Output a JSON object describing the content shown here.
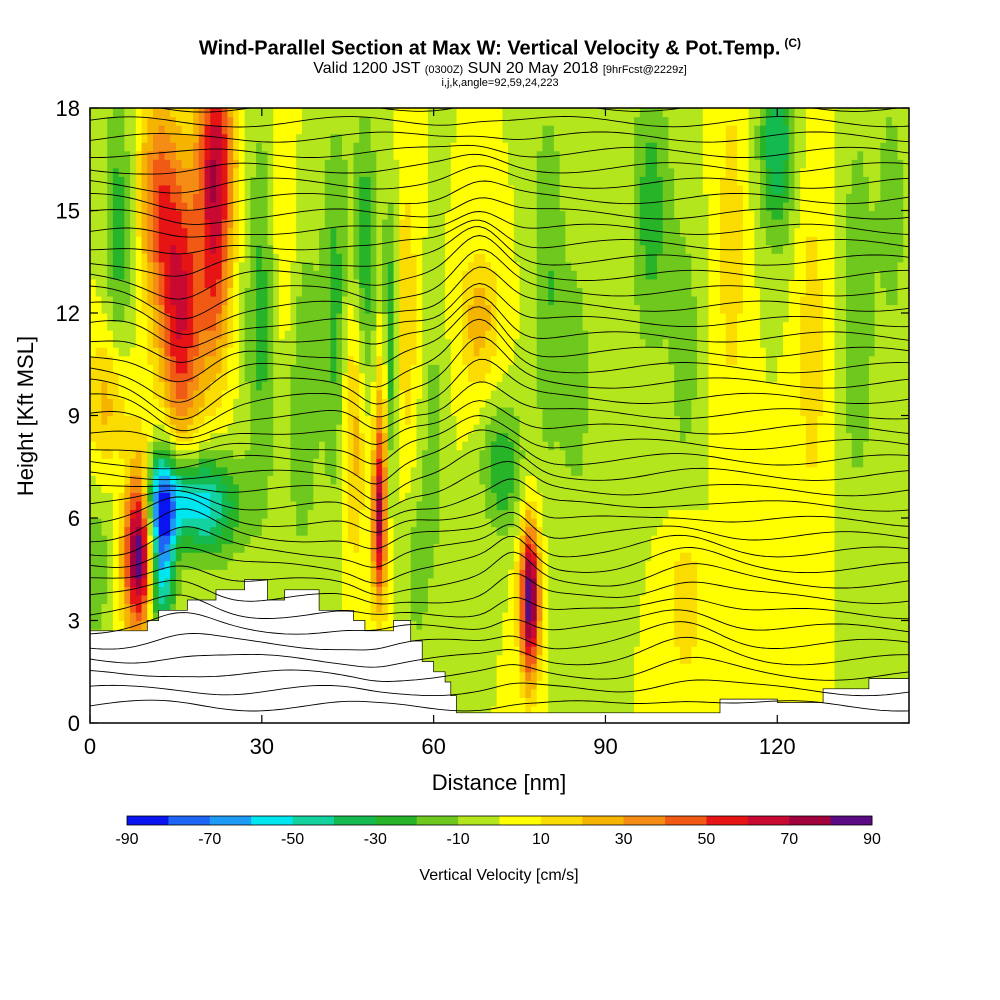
{
  "title": {
    "main": "Wind-Parallel Section at Max W: Vertical Velocity & Pot.Temp.",
    "copyright": "(C)",
    "valid_prefix": "Valid 1200 JST",
    "valid_utc": "(0300Z)",
    "valid_date": "SUN 20 May 2018",
    "forecast": "[9hrFcst@2229z]",
    "indices": "i,j,k,angle=92,59,24,223"
  },
  "chart_data": {
    "type": "heatmap",
    "title": "Wind-Parallel Section at Max W: Vertical Velocity & Pot.Temp.",
    "xlabel": "Distance [nm]",
    "ylabel": "Height [Kft MSL]",
    "xlim": [
      0,
      143
    ],
    "ylim": [
      0,
      18
    ],
    "x_ticks": [
      0,
      30,
      60,
      90,
      120
    ],
    "x_tick_labels": [
      "0",
      "30",
      "60",
      "90",
      "120"
    ],
    "y_ticks": [
      0,
      3,
      6,
      9,
      12,
      15,
      18
    ],
    "y_tick_labels": [
      "0",
      "3",
      "6",
      "9",
      "12",
      "15",
      "18"
    ],
    "colorbar": {
      "label": "Vertical Velocity [cm/s]",
      "tick_labels": [
        "-90",
        "-70",
        "-50",
        "-30",
        "-10",
        "10",
        "30",
        "50",
        "70",
        "90"
      ],
      "levels": [
        -90,
        -80,
        -70,
        -60,
        -50,
        -40,
        -30,
        -20,
        -10,
        0,
        10,
        20,
        30,
        40,
        50,
        60,
        70,
        80,
        90
      ],
      "colors": [
        "#0a14f0",
        "#1e64f5",
        "#1e9bf5",
        "#00e6f0",
        "#14d2a0",
        "#14b950",
        "#28b428",
        "#6ec81e",
        "#b4e61e",
        "#ffff00",
        "#fadc00",
        "#f5b400",
        "#f58c14",
        "#f05a14",
        "#e61414",
        "#c80a32",
        "#a0003c",
        "#5a0a82"
      ]
    },
    "background_value": 0,
    "w_features": [
      {
        "x": 8.5,
        "z": 5.2,
        "sx": 1.8,
        "sz": 1.7,
        "w": 95
      },
      {
        "x": 12.5,
        "z": 5.2,
        "sx": 1.6,
        "sz": 1.8,
        "w": -70
      },
      {
        "x": 14,
        "z": 6.6,
        "sx": 4.5,
        "sz": 0.9,
        "w": -45
      },
      {
        "x": 21,
        "z": 6.3,
        "sx": 4,
        "sz": 1.1,
        "w": -40
      },
      {
        "x": 16,
        "z": 12,
        "sx": 2.8,
        "sz": 2.8,
        "w": 60
      },
      {
        "x": 12,
        "z": 15.5,
        "sx": 2.5,
        "sz": 2.2,
        "w": 40
      },
      {
        "x": 22,
        "z": 16.5,
        "sx": 2.3,
        "sz": 2.2,
        "w": 65
      },
      {
        "x": 22,
        "z": 12.5,
        "sx": 1.8,
        "sz": 2,
        "w": 30
      },
      {
        "x": 5,
        "z": 14.5,
        "sx": 1.8,
        "sz": 3,
        "w": -25
      },
      {
        "x": 3,
        "z": 9.5,
        "sx": 2.5,
        "sz": 1.5,
        "w": 25
      },
      {
        "x": 30,
        "z": 12,
        "sx": 2,
        "sz": 4,
        "w": -25
      },
      {
        "x": 34,
        "z": 14,
        "sx": 2,
        "sz": 3,
        "w": 15
      },
      {
        "x": 37,
        "z": 10,
        "sx": 2,
        "sz": 4,
        "w": -20
      },
      {
        "x": 43,
        "z": 12,
        "sx": 1.8,
        "sz": 4,
        "w": -25
      },
      {
        "x": 46,
        "z": 9,
        "sx": 1.5,
        "sz": 3,
        "w": 30
      },
      {
        "x": 48,
        "z": 13.5,
        "sx": 1.5,
        "sz": 3,
        "w": -30
      },
      {
        "x": 50.5,
        "z": 5.8,
        "sx": 0.9,
        "sz": 1.7,
        "w": 65
      },
      {
        "x": 51,
        "z": 9,
        "sx": 0.9,
        "sz": 2.2,
        "w": 30
      },
      {
        "x": 52.5,
        "z": 11,
        "sx": 1,
        "sz": 3,
        "w": -35
      },
      {
        "x": 55,
        "z": 12,
        "sx": 1.5,
        "sz": 3,
        "w": 20
      },
      {
        "x": 57,
        "z": 4.5,
        "sx": 1.5,
        "sz": 1.8,
        "w": -15
      },
      {
        "x": 60,
        "z": 8,
        "sx": 1.5,
        "sz": 3,
        "w": -15
      },
      {
        "x": 68,
        "z": 11.8,
        "sx": 2.5,
        "sz": 1.5,
        "w": 25
      },
      {
        "x": 72,
        "z": 7.5,
        "sx": 2.5,
        "sz": 1.3,
        "w": -30
      },
      {
        "x": 76.8,
        "z": 3.6,
        "sx": 1.2,
        "sz": 1.6,
        "w": 90
      },
      {
        "x": 80,
        "z": 13,
        "sx": 2,
        "sz": 4,
        "w": -20
      },
      {
        "x": 85,
        "z": 10,
        "sx": 2,
        "sz": 3,
        "w": -15
      },
      {
        "x": 98,
        "z": 15,
        "sx": 2.5,
        "sz": 3,
        "w": -25
      },
      {
        "x": 104,
        "z": 11,
        "sx": 2,
        "sz": 3,
        "w": -15
      },
      {
        "x": 104,
        "z": 3.5,
        "sx": 2,
        "sz": 1.5,
        "w": 20
      },
      {
        "x": 112,
        "z": 14,
        "sx": 2,
        "sz": 4,
        "w": 15
      },
      {
        "x": 120,
        "z": 17,
        "sx": 2.2,
        "sz": 2,
        "w": -40
      },
      {
        "x": 126,
        "z": 11,
        "sx": 2,
        "sz": 4,
        "w": 15
      },
      {
        "x": 134,
        "z": 12,
        "sx": 2,
        "sz": 4,
        "w": -20
      },
      {
        "x": 140,
        "z": 15,
        "sx": 2,
        "sz": 3,
        "w": -15
      },
      {
        "x": 1,
        "z": 4.5,
        "sx": 1.5,
        "sz": 1.5,
        "w": -20
      }
    ],
    "terrain_kft": {
      "x": [
        0,
        10,
        10,
        12,
        12,
        17,
        17,
        22,
        22,
        27,
        27,
        31,
        31,
        34,
        34,
        40,
        40,
        46,
        46,
        48,
        48,
        53,
        53,
        56,
        56,
        58,
        58,
        60,
        60,
        62,
        62,
        63,
        63,
        64,
        64,
        110,
        110,
        120,
        120,
        128,
        128,
        136,
        136,
        143
      ],
      "z": [
        2.7,
        2.7,
        3.0,
        3.0,
        3.3,
        3.3,
        3.6,
        3.6,
        3.9,
        3.9,
        4.2,
        4.2,
        3.6,
        3.6,
        3.9,
        3.9,
        3.3,
        3.3,
        3.0,
        3.0,
        2.7,
        2.7,
        3.0,
        3.0,
        2.4,
        2.4,
        1.8,
        1.8,
        1.5,
        1.5,
        1.2,
        1.2,
        0.8,
        0.8,
        0.3,
        0.3,
        0.7,
        0.7,
        0.6,
        0.6,
        1.0,
        1.0,
        1.3,
        1.3
      ]
    },
    "theta_isentropes": {
      "count": 40,
      "base_kft": 0.5,
      "spacing_kft": 0.45,
      "perturbations": [
        {
          "x": 16,
          "z": 10,
          "sx": 5,
          "sz": 3,
          "dz": -1.0
        },
        {
          "x": 16,
          "z": 5.5,
          "sx": 5,
          "sz": 2,
          "dz": 1.0
        },
        {
          "x": 68,
          "z": 11,
          "sx": 4,
          "sz": 3,
          "dz": 1.3
        },
        {
          "x": 74,
          "z": 5,
          "sx": 3,
          "sz": 2,
          "dz": 0.8
        },
        {
          "x": 50,
          "z": 8,
          "sx": 3,
          "sz": 3,
          "dz": -0.6
        },
        {
          "x": 104,
          "z": 3,
          "sx": 6,
          "sz": 2,
          "dz": 0.6
        }
      ],
      "extra_contour_labels": "present"
    }
  }
}
